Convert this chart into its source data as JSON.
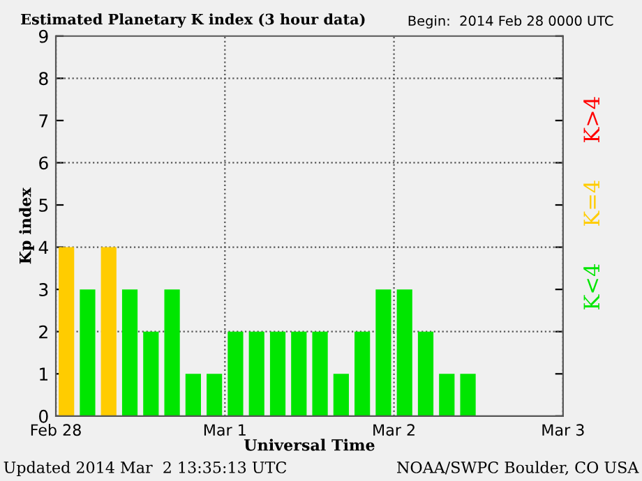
{
  "chart_data": {
    "type": "bar",
    "title": "Estimated Planetary K index (3 hour data)",
    "subtitle": "Begin:  2014 Feb 28 0000 UTC",
    "xlabel": "Universal Time",
    "ylabel": "Kp index",
    "x": [
      "2014-02-28T01:30",
      "2014-02-28T04:30",
      "2014-02-28T07:30",
      "2014-02-28T10:30",
      "2014-02-28T13:30",
      "2014-02-28T16:30",
      "2014-02-28T19:30",
      "2014-02-28T22:30",
      "2014-03-01T01:30",
      "2014-03-01T04:30",
      "2014-03-01T07:30",
      "2014-03-01T10:30",
      "2014-03-01T13:30",
      "2014-03-01T16:30",
      "2014-03-01T19:30",
      "2014-03-01T22:30",
      "2014-03-02T01:30",
      "2014-03-02T04:30",
      "2014-03-02T07:30",
      "2014-03-02T10:30"
    ],
    "series": [
      {
        "name": "K=4",
        "color": "#ffcc00",
        "values": [
          4,
          null,
          4,
          null,
          null,
          null,
          null,
          null,
          null,
          null,
          null,
          null,
          null,
          null,
          null,
          null,
          null,
          null,
          null,
          null
        ]
      },
      {
        "name": "K<4",
        "color": "#00e600",
        "values": [
          null,
          3,
          null,
          3,
          2,
          3,
          1,
          1,
          2,
          2,
          2,
          2,
          2,
          1,
          2,
          3,
          3,
          2,
          1,
          1
        ]
      }
    ],
    "xlim": [
      "2014-02-28",
      "2014-03-03"
    ],
    "xticks": [
      {
        "value": "2014-02-28",
        "label": "Feb 28"
      },
      {
        "value": "2014-03-01",
        "label": "Mar 1"
      },
      {
        "value": "2014-03-02",
        "label": "Mar 2"
      },
      {
        "value": "2014-03-03",
        "label": "Mar 3"
      }
    ],
    "ylim": [
      0,
      9
    ],
    "yticks": [
      0,
      1,
      2,
      3,
      4,
      5,
      6,
      7,
      8,
      9
    ],
    "grid": "x",
    "legend": "right",
    "ref_lines": [
      {
        "axis": "y",
        "value": 2,
        "line_style": "dotted"
      },
      {
        "axis": "y",
        "value": 4,
        "line_style": "dotted"
      },
      {
        "axis": "y",
        "value": 6,
        "line_style": "dotted"
      },
      {
        "axis": "y",
        "value": 8,
        "line_style": "dotted"
      }
    ],
    "annotations": [
      "Updated 2014 Mar  2 13:35:13 UTC",
      "NOAA/SWPC Boulder, CO USA",
      "K>4"
    ]
  }
}
